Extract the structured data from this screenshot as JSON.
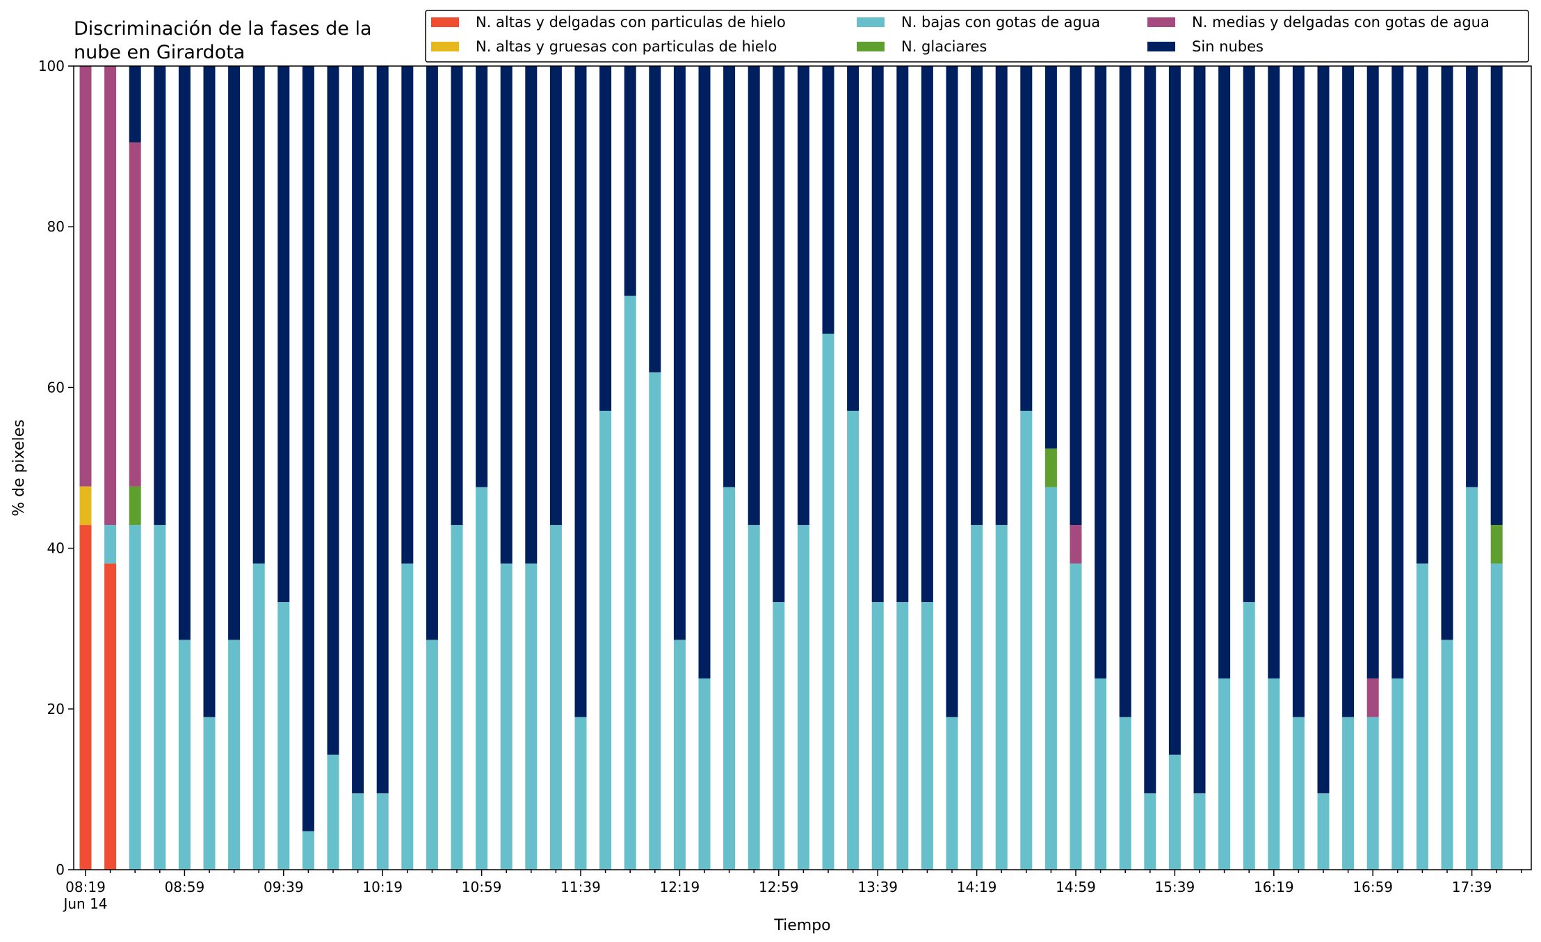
{
  "chart_data": {
    "type": "bar",
    "stacked": true,
    "title": "Discriminación de la fases de la\nnube en Girardota",
    "xlabel": "Tiempo",
    "ylabel": "% de pixeles",
    "ylim": [
      0,
      100
    ],
    "yticks": [
      0,
      20,
      40,
      60,
      80,
      100
    ],
    "grid": false,
    "legend_position": "top-right",
    "x_tick_labels": [
      {
        "label": "08:19",
        "sublabel": "Jun 14",
        "index": 0
      },
      {
        "label": "08:59",
        "index": 4
      },
      {
        "label": "09:39",
        "index": 8
      },
      {
        "label": "10:19",
        "index": 12
      },
      {
        "label": "10:59",
        "index": 16
      },
      {
        "label": "11:39",
        "index": 20
      },
      {
        "label": "12:19",
        "index": 24
      },
      {
        "label": "12:59",
        "index": 28
      },
      {
        "label": "13:39",
        "index": 32
      },
      {
        "label": "14:19",
        "index": 36
      },
      {
        "label": "14:59",
        "index": 40
      },
      {
        "label": "15:39",
        "index": 44
      },
      {
        "label": "16:19",
        "index": 48
      },
      {
        "label": "16:59",
        "index": 52
      },
      {
        "label": "17:39",
        "index": 56
      }
    ],
    "categories": [
      "08:19",
      "08:29",
      "08:39",
      "08:49",
      "08:59",
      "09:09",
      "09:19",
      "09:29",
      "09:39",
      "09:49",
      "09:59",
      "10:09",
      "10:19",
      "10:29",
      "10:39",
      "10:49",
      "10:59",
      "11:09",
      "11:19",
      "11:29",
      "11:39",
      "11:49",
      "11:59",
      "12:09",
      "12:19",
      "12:29",
      "12:39",
      "12:49",
      "12:59",
      "13:09",
      "13:19",
      "13:29",
      "13:39",
      "13:49",
      "13:59",
      "14:09",
      "14:19",
      "14:29",
      "14:39",
      "14:49",
      "14:59",
      "15:09",
      "15:19",
      "15:29",
      "15:39",
      "15:49",
      "15:59",
      "16:09",
      "16:19",
      "16:29",
      "16:39",
      "16:49",
      "16:59",
      "17:09",
      "17:19",
      "17:29",
      "17:39",
      "17:49"
    ],
    "series": [
      {
        "name": "N. altas y delgadas con particulas de hielo",
        "color": "#f04e32",
        "values": [
          42.9,
          38.1,
          0,
          0,
          0,
          0,
          0,
          0,
          0,
          0,
          0,
          0,
          0,
          0,
          0,
          0,
          0,
          0,
          0,
          0,
          0,
          0,
          0,
          0,
          0,
          0,
          0,
          0,
          0,
          0,
          0,
          0,
          0,
          0,
          0,
          0,
          0,
          0,
          0,
          0,
          0,
          0,
          0,
          0,
          0,
          0,
          0,
          0,
          0,
          0,
          0,
          0,
          0,
          0,
          0,
          0,
          0,
          0
        ]
      },
      {
        "name": "N. altas y gruesas con particulas de hielo",
        "color": "#e6b81e",
        "values": [
          4.8,
          0,
          0,
          0,
          0,
          0,
          0,
          0,
          0,
          0,
          0,
          0,
          0,
          0,
          0,
          0,
          0,
          0,
          0,
          0,
          0,
          0,
          0,
          0,
          0,
          0,
          0,
          0,
          0,
          0,
          0,
          0,
          0,
          0,
          0,
          0,
          0,
          0,
          0,
          0,
          0,
          0,
          0,
          0,
          0,
          0,
          0,
          0,
          0,
          0,
          0,
          0,
          0,
          0,
          0,
          0,
          0,
          0
        ]
      },
      {
        "name": "N. bajas con gotas de agua",
        "color": "#66bfca",
        "values": [
          0,
          4.8,
          42.9,
          42.9,
          28.6,
          19.0,
          28.6,
          38.1,
          33.3,
          4.8,
          14.3,
          9.5,
          9.5,
          38.1,
          28.6,
          42.9,
          47.6,
          38.1,
          38.1,
          42.9,
          19.0,
          57.1,
          71.4,
          61.9,
          28.6,
          23.8,
          47.6,
          42.9,
          33.3,
          42.9,
          66.7,
          57.1,
          33.3,
          33.3,
          33.3,
          19.0,
          42.9,
          42.9,
          57.1,
          47.6,
          38.1,
          23.8,
          19.0,
          9.5,
          14.3,
          9.5,
          23.8,
          33.3,
          23.8,
          19.0,
          9.5,
          19.0,
          19.0,
          23.8,
          38.1,
          28.6,
          47.6,
          38.1
        ]
      },
      {
        "name": "N. glaciares",
        "color": "#5e9f2e",
        "values": [
          0,
          0,
          4.8,
          0,
          0,
          0,
          0,
          0,
          0,
          0,
          0,
          0,
          0,
          0,
          0,
          0,
          0,
          0,
          0,
          0,
          0,
          0,
          0,
          0,
          0,
          0,
          0,
          0,
          0,
          0,
          0,
          0,
          0,
          0,
          0,
          0,
          0,
          0,
          0,
          4.8,
          0,
          0,
          0,
          0,
          0,
          0,
          0,
          0,
          0,
          0,
          0,
          0,
          0,
          0,
          0,
          0,
          0,
          4.8
        ]
      },
      {
        "name": "N. medias y delgadas con gotas de agua",
        "color": "#a44a7f",
        "values": [
          52.3,
          57.1,
          42.8,
          0,
          0,
          0,
          0,
          0,
          0,
          0,
          0,
          0,
          0,
          0,
          0,
          0,
          0,
          0,
          0,
          0,
          0,
          0,
          0,
          0,
          0,
          0,
          0,
          0,
          0,
          0,
          0,
          0,
          0,
          0,
          0,
          0,
          0,
          0,
          0,
          0,
          4.8,
          0,
          0,
          0,
          0,
          0,
          0,
          0,
          0,
          0,
          0,
          0,
          4.8,
          0,
          0,
          0,
          0,
          0
        ]
      },
      {
        "name": "Sin nubes",
        "color": "#001f5e",
        "values": [
          0,
          0,
          9.5,
          57.1,
          71.4,
          81.0,
          71.4,
          61.9,
          66.7,
          95.2,
          85.7,
          90.5,
          90.5,
          61.9,
          71.4,
          57.1,
          52.4,
          61.9,
          61.9,
          57.1,
          81.0,
          42.9,
          28.6,
          38.1,
          71.4,
          76.2,
          52.4,
          57.1,
          66.7,
          57.1,
          33.3,
          42.9,
          66.7,
          66.7,
          66.7,
          81.0,
          57.1,
          57.1,
          42.9,
          47.6,
          57.1,
          76.2,
          81.0,
          90.5,
          85.7,
          90.5,
          76.2,
          66.7,
          76.2,
          81.0,
          90.5,
          81.0,
          76.2,
          76.2,
          61.9,
          71.4,
          52.4,
          57.1
        ]
      }
    ]
  }
}
